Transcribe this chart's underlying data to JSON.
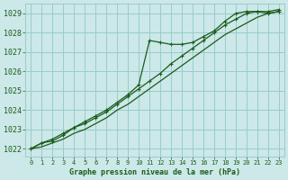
{
  "title": "Graphe pression niveau de la mer (hPa)",
  "bg_color": "#cce8e8",
  "grid_color": "#99cccc",
  "line_color": "#1a5c1a",
  "xlim": [
    -0.5,
    23.5
  ],
  "ylim": [
    1021.6,
    1029.5
  ],
  "yticks": [
    1022,
    1023,
    1024,
    1025,
    1026,
    1027,
    1028,
    1029
  ],
  "xticks": [
    0,
    1,
    2,
    3,
    4,
    5,
    6,
    7,
    8,
    9,
    10,
    11,
    12,
    13,
    14,
    15,
    16,
    17,
    18,
    19,
    20,
    21,
    22,
    23
  ],
  "series1": {
    "x": [
      0,
      1,
      2,
      3,
      4,
      5,
      6,
      7,
      8,
      9,
      10,
      11,
      12,
      13,
      14,
      15,
      16,
      17,
      18,
      19,
      20,
      21,
      22,
      23
    ],
    "y": [
      1022.0,
      1022.3,
      1022.4,
      1022.7,
      1023.1,
      1023.4,
      1023.7,
      1024.0,
      1024.4,
      1024.8,
      1025.3,
      1027.6,
      1027.5,
      1027.4,
      1027.4,
      1027.5,
      1027.8,
      1028.1,
      1028.6,
      1029.0,
      1029.1,
      1029.1,
      1029.0,
      1029.1
    ]
  },
  "series2": {
    "x": [
      0,
      1,
      2,
      3,
      4,
      5,
      6,
      7,
      8,
      9,
      10,
      11,
      12,
      13,
      14,
      15,
      16,
      17,
      18,
      19,
      20,
      21,
      22,
      23
    ],
    "y": [
      1022.0,
      1022.3,
      1022.5,
      1022.8,
      1023.1,
      1023.3,
      1023.6,
      1023.9,
      1024.3,
      1024.7,
      1025.1,
      1025.5,
      1025.9,
      1026.4,
      1026.8,
      1027.2,
      1027.6,
      1028.0,
      1028.4,
      1028.7,
      1029.0,
      1029.1,
      1029.1,
      1029.2
    ]
  },
  "series3": {
    "x": [
      0,
      1,
      2,
      3,
      4,
      5,
      6,
      7,
      8,
      9,
      10,
      11,
      12,
      13,
      14,
      15,
      16,
      17,
      18,
      19,
      20,
      21,
      22,
      23
    ],
    "y": [
      1022.0,
      1022.1,
      1022.3,
      1022.5,
      1022.8,
      1023.0,
      1023.3,
      1023.6,
      1024.0,
      1024.3,
      1024.7,
      1025.1,
      1025.5,
      1025.9,
      1026.3,
      1026.7,
      1027.1,
      1027.5,
      1027.9,
      1028.2,
      1028.5,
      1028.8,
      1029.0,
      1029.1
    ]
  }
}
